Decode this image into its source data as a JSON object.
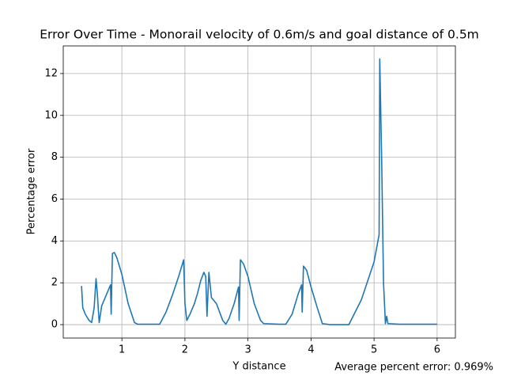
{
  "chart_data": {
    "type": "line",
    "title": "Error Over Time - Monorail velocity of 0.6m/s and goal distance of 0.5m",
    "xlabel": "Y distance",
    "ylabel": "Percentage error",
    "annotation": "Average percent error: 0.969%",
    "x": [
      0.36,
      0.38,
      0.42,
      0.48,
      0.52,
      0.56,
      0.59,
      0.61,
      0.64,
      0.68,
      0.75,
      0.82,
      0.83,
      0.85,
      0.88,
      0.92,
      1.0,
      1.1,
      1.2,
      1.25,
      1.6,
      1.7,
      1.8,
      1.9,
      1.98,
      2.0,
      2.03,
      2.08,
      2.15,
      2.2,
      2.25,
      2.3,
      2.33,
      2.35,
      2.38,
      2.42,
      2.5,
      2.6,
      2.65,
      2.7,
      2.78,
      2.85,
      2.86,
      2.88,
      2.93,
      3.0,
      3.1,
      3.2,
      3.25,
      3.5,
      3.6,
      3.7,
      3.8,
      3.85,
      3.86,
      3.88,
      3.93,
      4.0,
      4.1,
      4.18,
      4.3,
      4.6,
      4.8,
      5.0,
      5.08,
      5.09,
      5.12,
      5.15,
      5.18,
      5.2,
      5.22,
      5.4,
      6.0
    ],
    "series": [
      {
        "name": "Percentage error",
        "color": "#1f77b4",
        "values": [
          1.85,
          0.8,
          0.5,
          0.2,
          0.1,
          0.8,
          2.2,
          1.5,
          0.1,
          0.9,
          1.4,
          1.9,
          0.5,
          3.4,
          3.45,
          3.2,
          2.4,
          1.0,
          0.1,
          0.02,
          0.02,
          0.6,
          1.4,
          2.3,
          3.1,
          1.0,
          0.2,
          0.5,
          1.0,
          1.5,
          2.1,
          2.5,
          2.3,
          0.4,
          2.5,
          1.3,
          1.0,
          0.2,
          0.02,
          0.3,
          1.0,
          1.8,
          0.2,
          3.1,
          2.9,
          2.3,
          1.0,
          0.2,
          0.05,
          0.02,
          0.02,
          0.5,
          1.5,
          1.9,
          0.6,
          2.8,
          2.6,
          1.8,
          0.8,
          0.05,
          0.0,
          0.0,
          1.2,
          3.0,
          4.3,
          12.7,
          8,
          2,
          0.05,
          0.4,
          0.05,
          0.02,
          0.02
        ]
      }
    ],
    "xlim": [
      0.07,
      6.29
    ],
    "ylim": [
      -0.64,
      13.32
    ],
    "xticks": [
      1,
      2,
      3,
      4,
      5,
      6
    ],
    "yticks": [
      0,
      2,
      4,
      6,
      8,
      10,
      12
    ],
    "grid": true
  }
}
